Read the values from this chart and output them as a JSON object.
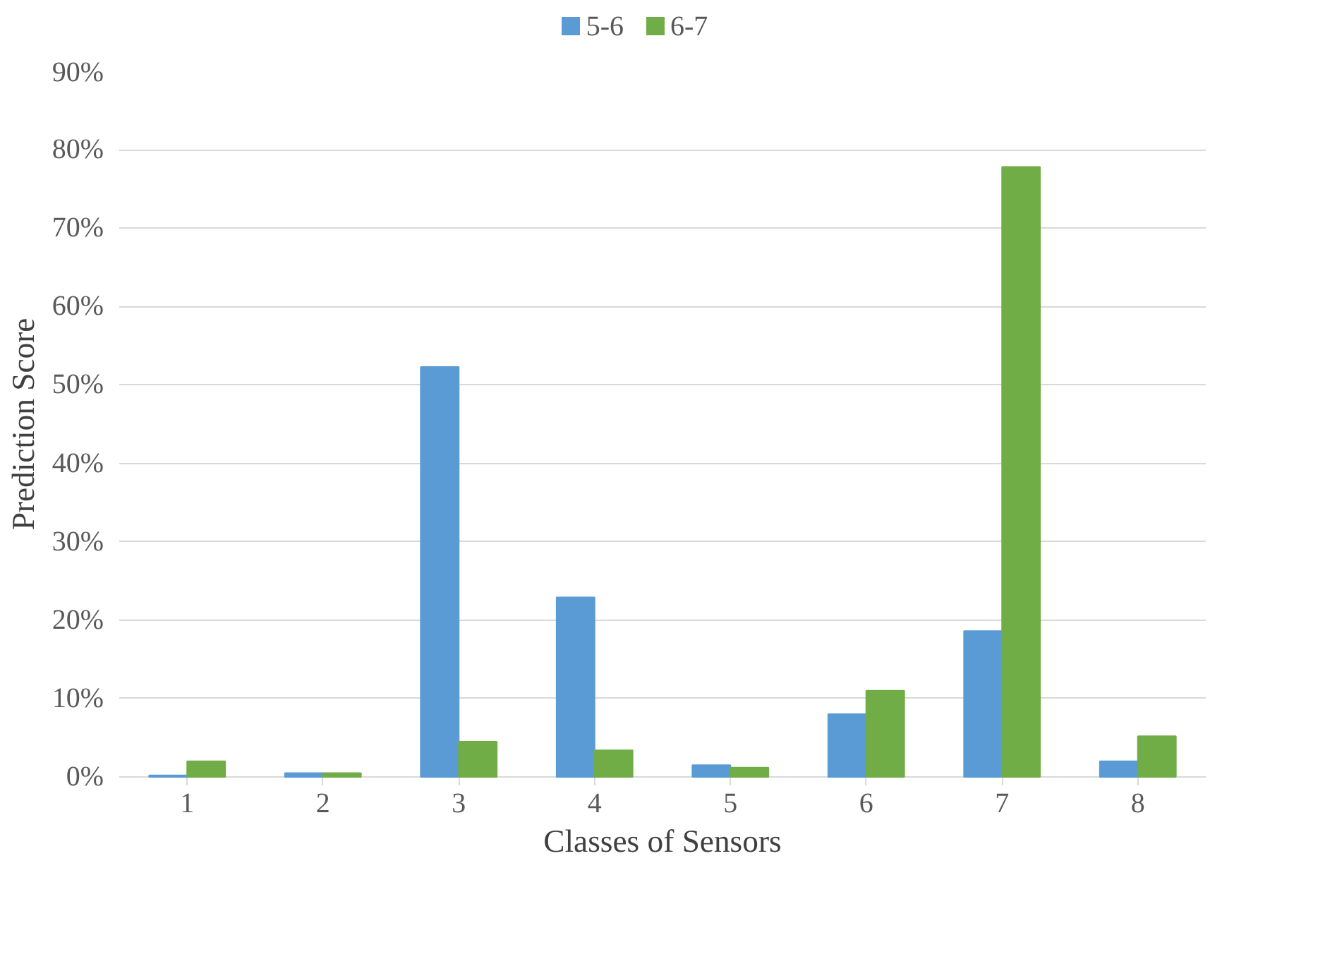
{
  "chart_data": {
    "type": "bar",
    "xlabel": "Classes of Sensors",
    "ylabel": "Prediction Score",
    "categories": [
      "1",
      "2",
      "3",
      "4",
      "5",
      "6",
      "7",
      "8"
    ],
    "series": [
      {
        "name": "5-6",
        "color": "#5b9bd5",
        "values": [
          0.2,
          0.5,
          52.3,
          22.9,
          1.5,
          8.0,
          18.6,
          2.0
        ]
      },
      {
        "name": "6-7",
        "color": "#70ad47",
        "values": [
          2.0,
          0.5,
          4.5,
          3.4,
          1.2,
          11.0,
          77.8,
          5.2
        ]
      }
    ],
    "ylim": [
      0,
      90
    ],
    "yticks": [
      {
        "value": 0,
        "label": "0%"
      },
      {
        "value": 10,
        "label": "10%"
      },
      {
        "value": 20,
        "label": "20%"
      },
      {
        "value": 30,
        "label": "30%"
      },
      {
        "value": 40,
        "label": "40%"
      },
      {
        "value": 50,
        "label": "50%"
      },
      {
        "value": 60,
        "label": "60%"
      },
      {
        "value": 70,
        "label": "70%"
      },
      {
        "value": 80,
        "label": "80%"
      },
      {
        "value": 90,
        "label": "90%"
      }
    ],
    "grid": "y",
    "legend": "top"
  }
}
